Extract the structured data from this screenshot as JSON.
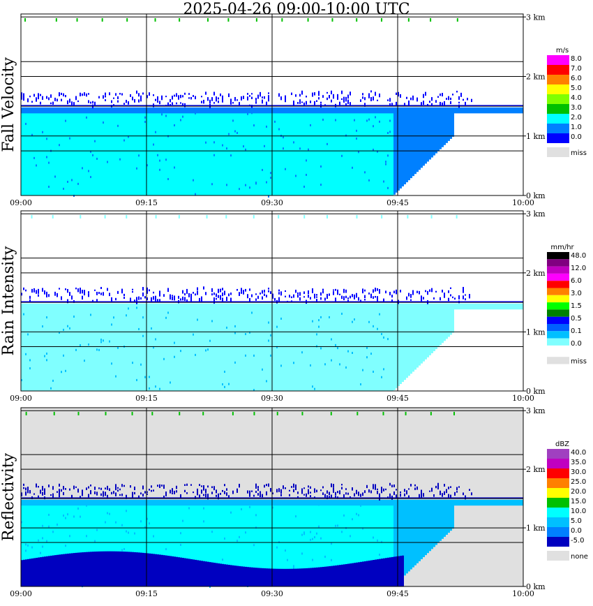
{
  "title": "2025-04-26  09:00-10:00 UTC",
  "colors": {
    "grid": "#000000",
    "missing": "#e0e0e0"
  },
  "chart_data": [
    {
      "type": "heatmap",
      "panel_label": "Fall Velocity",
      "x_ticks": [
        "09:00",
        "09:15",
        "09:30",
        "09:45",
        "10:00"
      ],
      "y_ticks": [
        "0 km",
        "1 km",
        "2 km",
        "3 km"
      ],
      "ylim_km": [
        0,
        3
      ],
      "legend": {
        "unit": "m/s",
        "labels": [
          "8.0",
          "7.0",
          "6.0",
          "5.0",
          "4.0",
          "3.0",
          "2.0",
          "1.0",
          "0.0",
          "miss"
        ],
        "colors": [
          "#ff00ff",
          "#ff0000",
          "#ff8000",
          "#ffff00",
          "#80ff00",
          "#00c000",
          "#00ffff",
          "#0080ff",
          "#0000ff",
          "#e0e0e0"
        ]
      }
    },
    {
      "type": "heatmap",
      "panel_label": "Rain Intensity",
      "x_ticks": [
        "09:00",
        "09:15",
        "09:30",
        "09:45",
        "10:00"
      ],
      "y_ticks": [
        "0 km",
        "1 km",
        "2 km",
        "3 km"
      ],
      "ylim_km": [
        0,
        3
      ],
      "legend": {
        "unit": "mm/hr",
        "labels": [
          "48.0",
          "12.0",
          "6.0",
          "3.0",
          "1.5",
          "0.5",
          "0.1",
          "0.0",
          "miss"
        ],
        "colors": [
          "#000000",
          "#800080",
          "#c000c0",
          "#ff00ff",
          "#ff0000",
          "#ff8000",
          "#ffff00",
          "#00ff00",
          "#008000",
          "#0000ff",
          "#0060ff",
          "#00c0ff",
          "#80ffff",
          "#ffffff",
          "#e0e0e0"
        ]
      }
    },
    {
      "type": "heatmap",
      "panel_label": "Reflectivity",
      "x_ticks": [
        "09:00",
        "09:15",
        "09:30",
        "09:45",
        "10:00"
      ],
      "y_ticks": [
        "0 km",
        "1 km",
        "2 km",
        "3 km"
      ],
      "ylim_km": [
        0,
        3
      ],
      "legend": {
        "unit": "dBZ",
        "labels": [
          "40.0",
          "35.0",
          "30.0",
          "25.0",
          "20.0",
          "15.0",
          "10.0",
          "5.0",
          "0.0",
          "-5.0",
          "none"
        ],
        "colors": [
          "#a040c0",
          "#c000c0",
          "#ff0000",
          "#ff8000",
          "#ffff00",
          "#00c000",
          "#00ffff",
          "#00c0ff",
          "#0080ff",
          "#0000c0",
          "#e0e0e0"
        ]
      }
    }
  ]
}
